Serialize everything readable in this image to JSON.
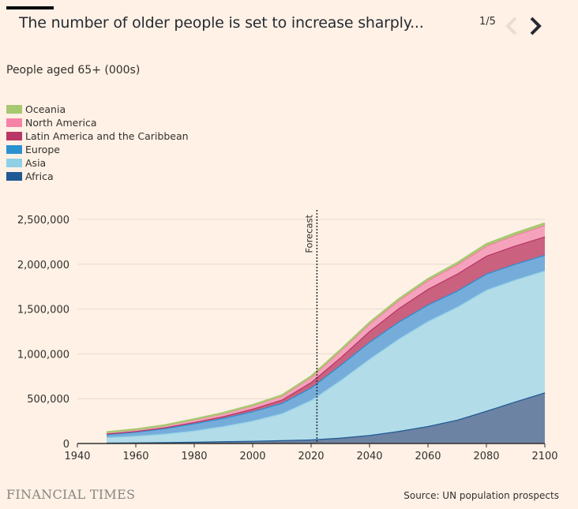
{
  "header": {
    "title": "The number of older people is set to increase sharply...",
    "pager": "1/5",
    "prev_icon": "chevron-left-icon",
    "next_icon": "chevron-right-icon"
  },
  "chart_data": {
    "type": "area",
    "title": "The number of older people is set to increase sharply...",
    "subtitle": "People aged 65+ (000s)",
    "xlabel": "",
    "ylabel": "",
    "stacked": true,
    "xlim": [
      1940,
      2100
    ],
    "ylim": [
      0,
      2500000
    ],
    "x_ticks": [
      1940,
      1960,
      1980,
      2000,
      2020,
      2040,
      2060,
      2080,
      2100
    ],
    "y_ticks": [
      0,
      500000,
      1000000,
      1500000,
      2000000,
      2500000
    ],
    "y_tick_labels": [
      "0",
      "500,000",
      "1,000,000",
      "1,500,000",
      "2,000,000",
      "2,500,000"
    ],
    "grid": "horizontal",
    "legend_placement": "top-left",
    "annotation": {
      "label": "Forecast",
      "x": 2022
    },
    "x": [
      1950,
      1960,
      1970,
      1980,
      1990,
      2000,
      2010,
      2020,
      2030,
      2040,
      2050,
      2060,
      2070,
      2080,
      2090,
      2100
    ],
    "series": [
      {
        "name": "Africa",
        "color": "#1f5a94",
        "fill": "#6d83a3",
        "values": [
          10000,
          12000,
          15000,
          20000,
          25000,
          30000,
          37000,
          45000,
          65000,
          95000,
          140000,
          195000,
          265000,
          365000,
          470000,
          570000
        ]
      },
      {
        "name": "Asia",
        "color": "#8fd0e7",
        "fill": "#b2dce8",
        "values": [
          60000,
          75000,
          95000,
          125000,
          170000,
          225000,
          300000,
          440000,
          640000,
          850000,
          1030000,
          1170000,
          1260000,
          1350000,
          1360000,
          1360000
        ]
      },
      {
        "name": "Europe",
        "color": "#2a91d0",
        "fill": "#76acda",
        "values": [
          35000,
          45000,
          60000,
          80000,
          90000,
          105000,
          115000,
          140000,
          170000,
          190000,
          190000,
          185000,
          180000,
          180000,
          175000,
          175000
        ]
      },
      {
        "name": "Latin America and the Caribbean",
        "color": "#b83767",
        "fill": "#c9617f",
        "values": [
          5000,
          7000,
          10000,
          15000,
          20000,
          28000,
          38000,
          60000,
          85000,
          120000,
          150000,
          175000,
          190000,
          200000,
          205000,
          205000
        ]
      },
      {
        "name": "North America",
        "color": "#f583a7",
        "fill": "#f5a3bd",
        "values": [
          14000,
          17000,
          22000,
          28000,
          33000,
          37000,
          43000,
          57000,
          74000,
          82000,
          88000,
          95000,
          102000,
          110000,
          118000,
          125000
        ]
      },
      {
        "name": "Oceania",
        "color": "#a8c870",
        "fill": "#a8c870",
        "values": [
          1000,
          2000,
          2000,
          2500,
          3000,
          4000,
          5000,
          7000,
          9000,
          11000,
          13000,
          15000,
          17000,
          19000,
          20000,
          22000
        ]
      }
    ]
  },
  "footer": {
    "brand": "FINANCIAL TIMES",
    "source": "Source: UN population prospects"
  }
}
